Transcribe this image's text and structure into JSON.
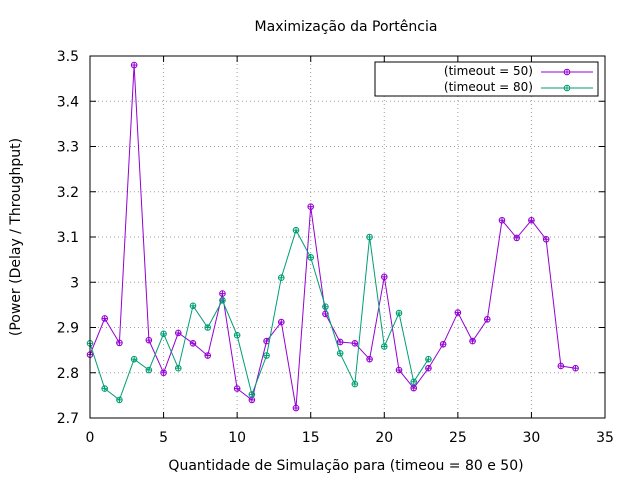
{
  "chart_data": {
    "type": "line",
    "title": "Maximização da Portência",
    "xlabel": "Quantidade de Simulação para (timeou = 80 e 50)",
    "ylabel": "(Power (Delay / Throughput)",
    "xlim": [
      0,
      35
    ],
    "ylim": [
      2.7,
      3.5
    ],
    "xticks": [
      0,
      5,
      10,
      15,
      20,
      25,
      30,
      35
    ],
    "yticks": [
      2.7,
      2.8,
      2.9,
      3.0,
      3.1,
      3.2,
      3.3,
      3.4,
      3.5
    ],
    "xtick_labels": [
      "0",
      "5",
      "10",
      "15",
      "20",
      "25",
      "30",
      "35"
    ],
    "ytick_labels": [
      "2.7",
      "2.8",
      "2.9",
      "3",
      "3.1",
      "3.2",
      "3.3",
      "3.4",
      "3.5"
    ],
    "grid": true,
    "legend_position": "top-right",
    "series": [
      {
        "name": "(timeout = 50)",
        "color": "#9400d3",
        "x": [
          0,
          1,
          2,
          3,
          4,
          5,
          6,
          7,
          8,
          9,
          10,
          11,
          12,
          13,
          14,
          15,
          16,
          17,
          18,
          19,
          20,
          21,
          22,
          23,
          24,
          25,
          26,
          27,
          28,
          29,
          30,
          31,
          32,
          33
        ],
        "y": [
          2.84,
          2.92,
          2.866,
          3.48,
          2.872,
          2.8,
          2.888,
          2.865,
          2.838,
          2.975,
          2.765,
          2.74,
          2.87,
          2.912,
          2.722,
          3.167,
          2.93,
          2.868,
          2.865,
          2.83,
          3.012,
          2.806,
          2.766,
          2.81,
          2.863,
          2.933,
          2.87,
          2.918,
          3.137,
          3.098,
          3.137,
          3.095,
          2.815,
          2.81
        ]
      },
      {
        "name": "(timeout = 80)",
        "color": "#009e73",
        "x": [
          0,
          1,
          2,
          3,
          4,
          5,
          6,
          7,
          8,
          9,
          10,
          11,
          12,
          13,
          14,
          15,
          16,
          17,
          18,
          19,
          20,
          21,
          22,
          23
        ],
        "y": [
          2.865,
          2.765,
          2.74,
          2.83,
          2.806,
          2.886,
          2.81,
          2.948,
          2.9,
          2.96,
          2.883,
          2.752,
          2.838,
          3.01,
          3.115,
          3.055,
          2.946,
          2.843,
          2.775,
          3.1,
          2.858,
          2.932,
          2.78,
          2.83
        ]
      }
    ]
  }
}
